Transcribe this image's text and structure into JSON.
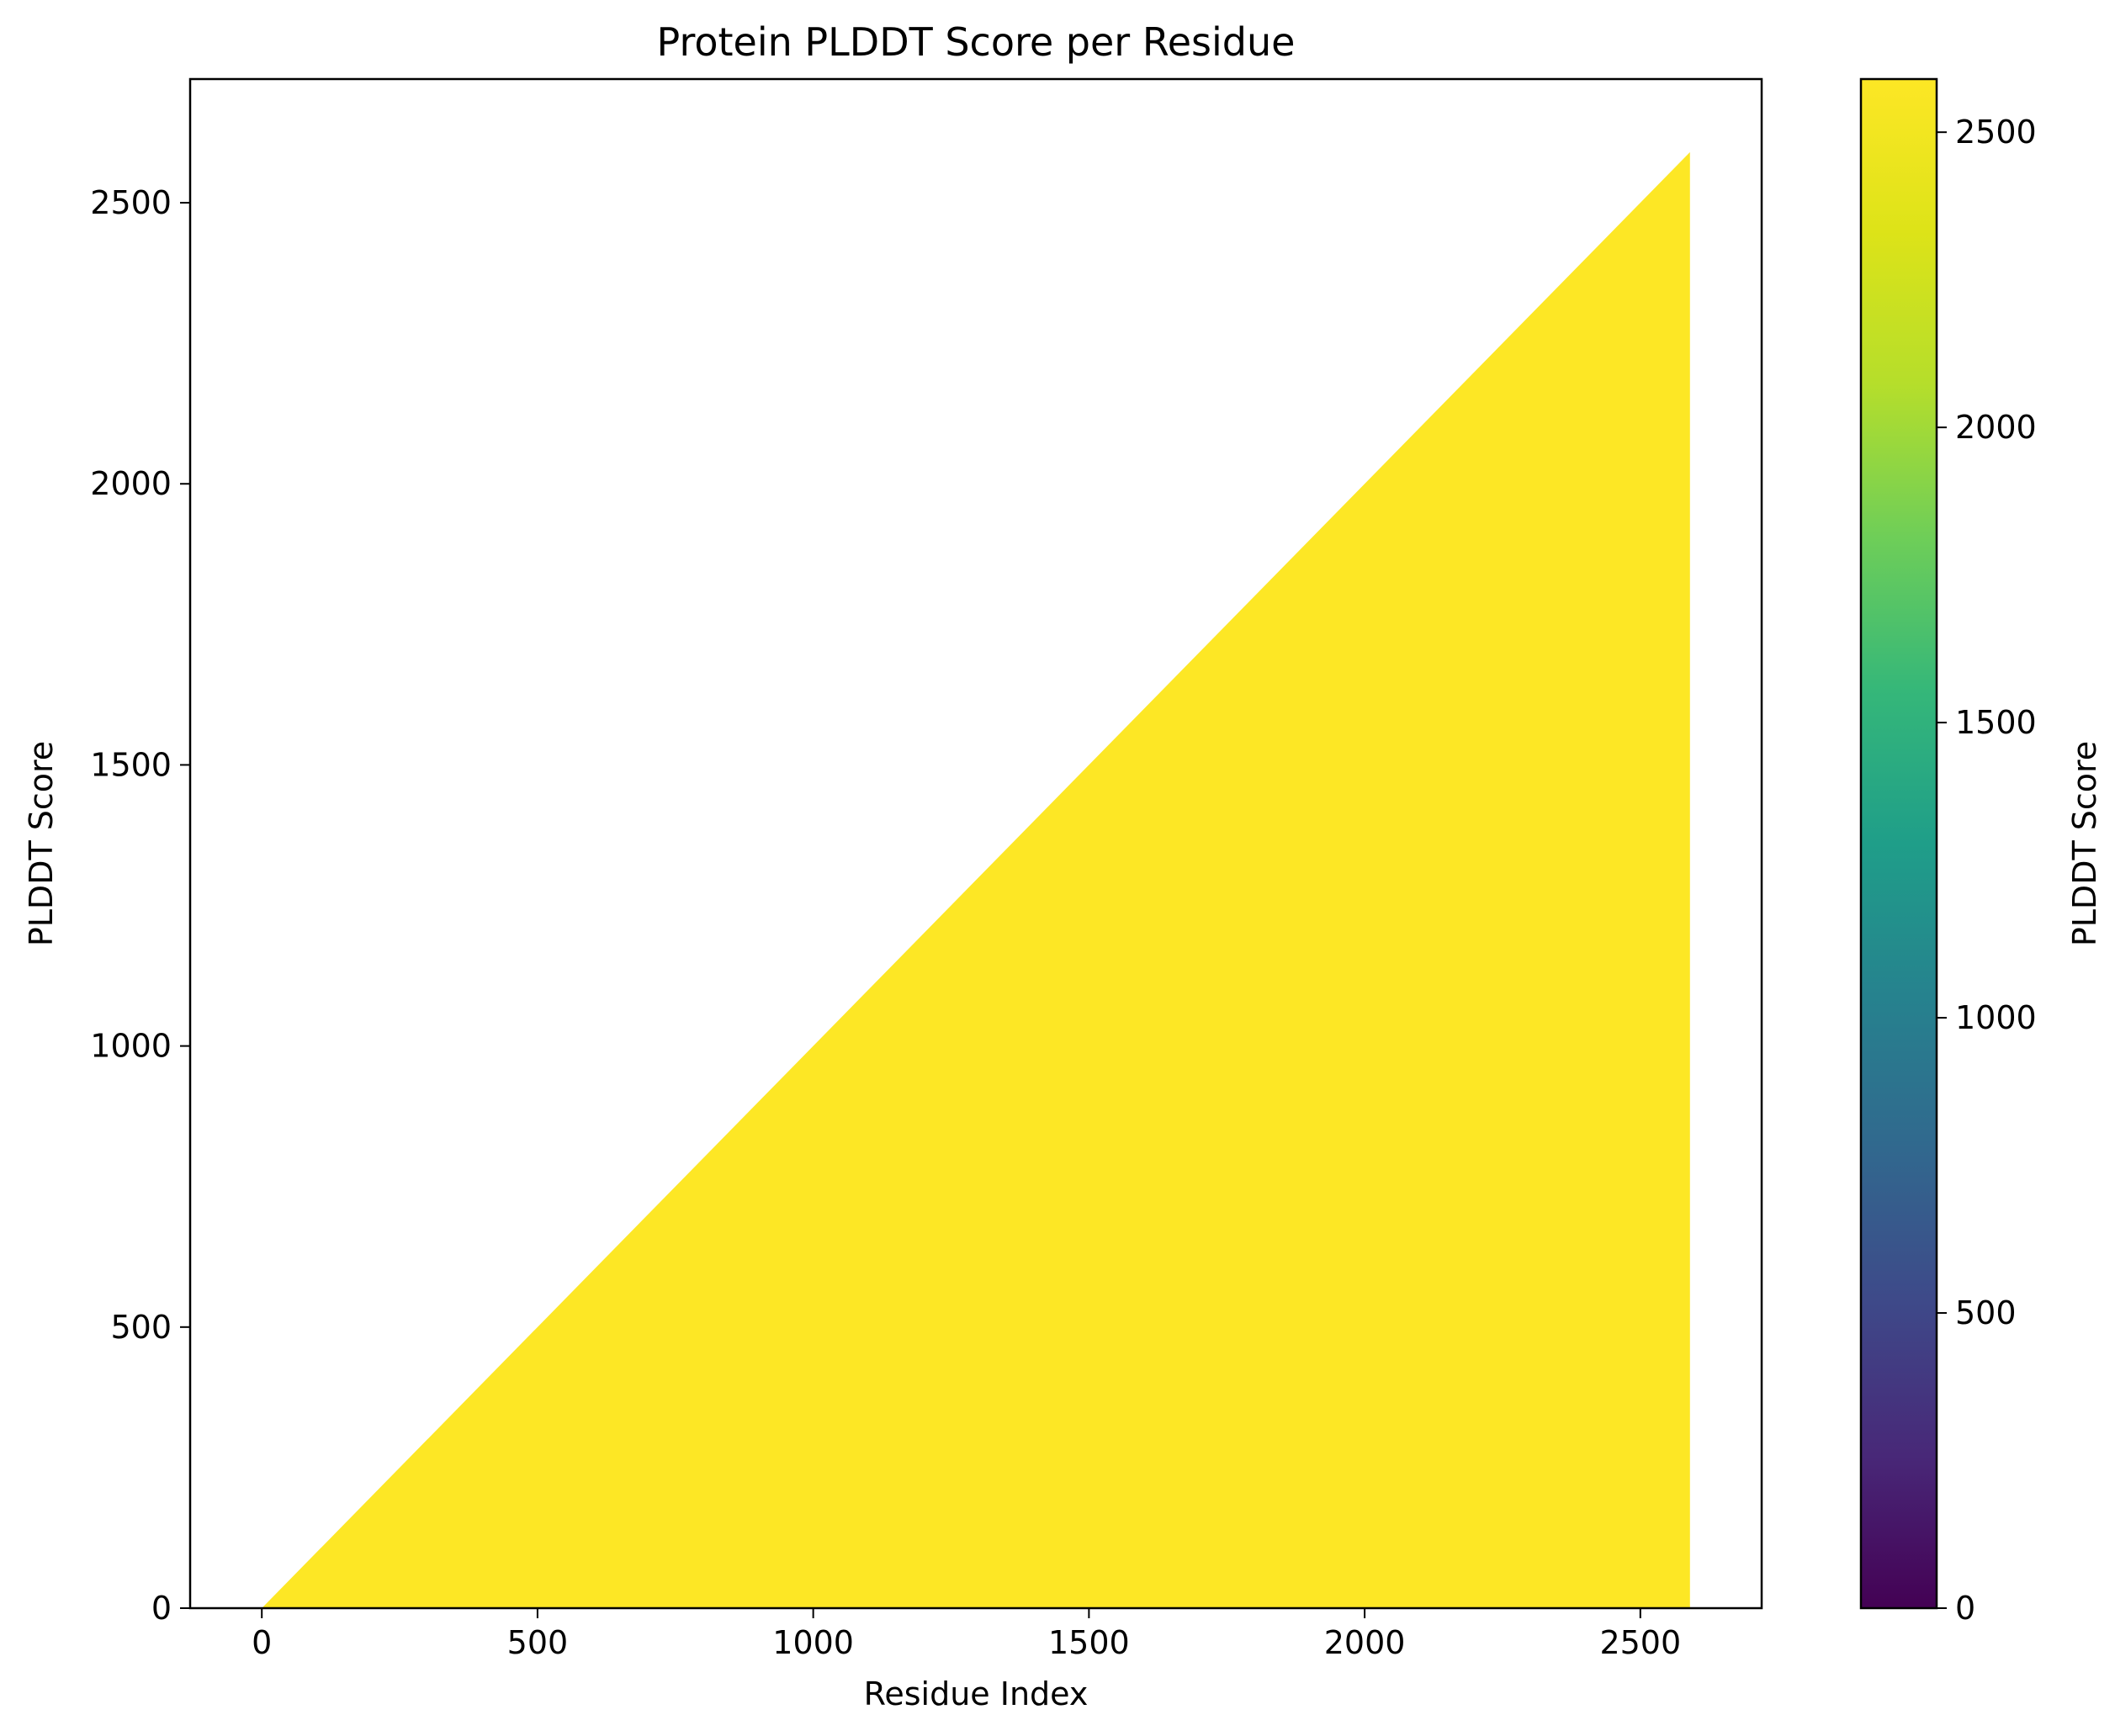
{
  "chart_data": {
    "type": "area",
    "title": "Protein PLDDT Score per Residue",
    "xlabel": "Residue Index",
    "ylabel": "PLDDT Score",
    "xlim": [
      -130,
      2720
    ],
    "ylim": [
      0,
      2720
    ],
    "xticks": [
      0,
      500,
      1000,
      1500,
      2000,
      2500
    ],
    "yticks": [
      0,
      500,
      1000,
      1500,
      2000,
      2500
    ],
    "series": [
      {
        "x": [
          0,
          2590
        ],
        "y": [
          0,
          2590
        ],
        "fill_to": 0,
        "color": "#fde725"
      }
    ],
    "colorbar": {
      "label": "PLDDT Score",
      "colormap": "viridis",
      "range": [
        0,
        2590
      ],
      "ticks": [
        0,
        500,
        1000,
        1500,
        2000,
        2500
      ]
    },
    "grid": false
  }
}
